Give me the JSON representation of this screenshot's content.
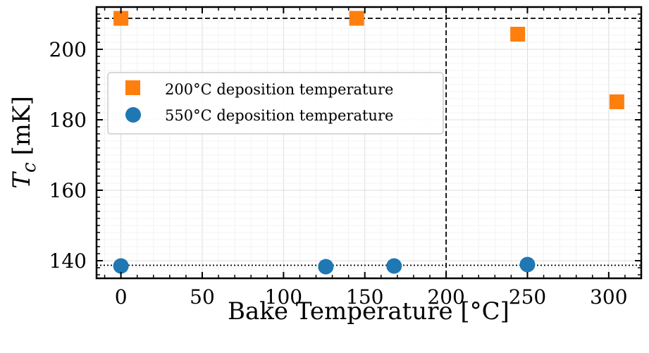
{
  "chart_data": {
    "type": "scatter",
    "xlabel": "Bake Temperature [°C]",
    "ylabel_main": "T",
    "ylabel_sub": "c",
    "ylabel_unit": "[mK]",
    "xlim": [
      -15,
      320
    ],
    "ylim": [
      135,
      212
    ],
    "xticks": [
      0,
      50,
      100,
      150,
      200,
      250,
      300
    ],
    "yticks": [
      140,
      160,
      180,
      200
    ],
    "x_minor_step": 10,
    "y_minor_step": 2,
    "grid": "major and minor, light gray",
    "legend_position": "upper left",
    "series": [
      {
        "name": "200°C deposition temperature",
        "marker": "square",
        "color": "#ff7f0e",
        "x": [
          0,
          145,
          244,
          305
        ],
        "y": [
          208.8,
          208.8,
          204.3,
          185.1
        ]
      },
      {
        "name": "550°C deposition temperature",
        "marker": "circle",
        "color": "#1f77b4",
        "x": [
          0,
          126,
          168,
          250
        ],
        "y": [
          138.5,
          138.3,
          138.5,
          138.9
        ]
      }
    ],
    "reference_lines": [
      {
        "orientation": "horizontal",
        "value": 208.8,
        "style": "dashed"
      },
      {
        "orientation": "vertical",
        "value": 200,
        "style": "dashed"
      },
      {
        "orientation": "horizontal",
        "value": 138.7,
        "style": "dotted"
      }
    ]
  }
}
